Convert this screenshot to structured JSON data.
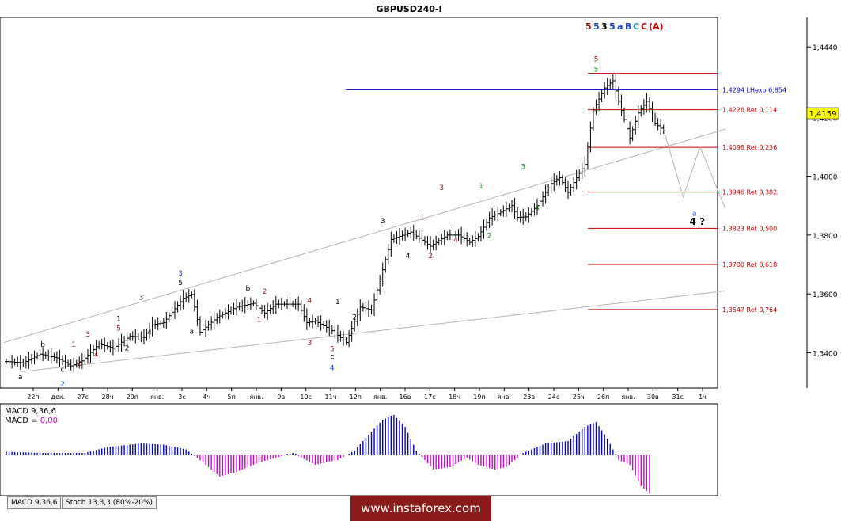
{
  "chart_data": [
    {
      "type": "candlestick",
      "title": "GBPUSD240-I",
      "ylim": [
        1.328,
        1.454
      ],
      "y_ticks": [
        "1,4440",
        "1,4200",
        "1,4000",
        "1,3800",
        "1,3600",
        "1,3400"
      ],
      "y_tick_values": [
        1.444,
        1.42,
        1.4,
        1.38,
        1.36,
        1.34
      ],
      "current_price_label": "1,4159",
      "current_price": 1.4159,
      "x_labels": [
        "22п",
        "дек.",
        "27с",
        "28ч",
        "29п",
        "янв.",
        "3с",
        "4ч",
        "5п",
        "янв.",
        "9в",
        "10с",
        "11ч",
        "12п",
        "янв.",
        "16в",
        "17с",
        "18ч",
        "19п",
        "янв.",
        "23в",
        "24с",
        "25ч",
        "26п",
        "янв.",
        "30в",
        "31с",
        "1ч"
      ],
      "n_bars": 240,
      "price_path": [
        [
          0,
          1.337
        ],
        [
          6,
          1.3365
        ],
        [
          12,
          1.3395
        ],
        [
          18,
          1.3382
        ],
        [
          23,
          1.3355
        ],
        [
          27,
          1.3372
        ],
        [
          33,
          1.343
        ],
        [
          38,
          1.3415
        ],
        [
          44,
          1.3456
        ],
        [
          49,
          1.3452
        ],
        [
          52,
          1.3495
        ],
        [
          56,
          1.3502
        ],
        [
          63,
          1.3585
        ],
        [
          66,
          1.3598
        ],
        [
          69,
          1.347
        ],
        [
          75,
          1.352
        ],
        [
          82,
          1.3555
        ],
        [
          88,
          1.3568
        ],
        [
          92,
          1.3535
        ],
        [
          96,
          1.3565
        ],
        [
          104,
          1.3565
        ],
        [
          107,
          1.3502
        ],
        [
          110,
          1.3508
        ],
        [
          116,
          1.3475
        ],
        [
          121,
          1.3435
        ],
        [
          126,
          1.3555
        ],
        [
          130,
          1.3545
        ],
        [
          137,
          1.3785
        ],
        [
          144,
          1.381
        ],
        [
          151,
          1.3762
        ],
        [
          157,
          1.38
        ],
        [
          161,
          1.38
        ],
        [
          165,
          1.3775
        ],
        [
          168,
          1.3795
        ],
        [
          172,
          1.3858
        ],
        [
          176,
          1.3878
        ],
        [
          180,
          1.39
        ],
        [
          182,
          1.386
        ],
        [
          185,
          1.3862
        ],
        [
          189,
          1.39
        ],
        [
          194,
          1.3975
        ],
        [
          197,
          1.3995
        ],
        [
          200,
          1.3945
        ],
        [
          203,
          1.3995
        ],
        [
          206,
          1.404
        ],
        [
          209,
          1.4225
        ],
        [
          213,
          1.43
        ],
        [
          216,
          1.4325
        ],
        [
          218,
          1.4255
        ],
        [
          222,
          1.413
        ],
        [
          225,
          1.4215
        ],
        [
          228,
          1.4255
        ],
        [
          231,
          1.418
        ],
        [
          234,
          1.4155
        ]
      ],
      "projection_path": [
        [
          234,
          1.4159
        ],
        [
          241,
          1.393
        ],
        [
          247,
          1.41
        ],
        [
          256,
          1.389
        ]
      ],
      "horizontal_levels": [
        {
          "price": 1.435,
          "label": "",
          "color": "#cc0000"
        },
        {
          "price": 1.4294,
          "label": "1,4294 LHexp 6,854",
          "color": "#0000cc"
        },
        {
          "price": 1.4226,
          "label": "1,4226 Ret 0,114",
          "color": "#cc0000"
        },
        {
          "price": 1.4098,
          "label": "1,4098 Ret 0,236",
          "color": "#cc0000"
        },
        {
          "price": 1.3946,
          "label": "1,3946 Ret 0,382",
          "color": "#cc0000"
        },
        {
          "price": 1.3823,
          "label": "1,3823 Ret 0,500",
          "color": "#cc0000"
        },
        {
          "price": 1.37,
          "label": "1,3700 Ret 0,618",
          "color": "#cc0000"
        },
        {
          "price": 1.3547,
          "label": "1,3547 Ret 0,764",
          "color": "#cc0000"
        }
      ],
      "wave_labels": [
        {
          "text": "a",
          "bar": 5,
          "price": 1.331,
          "color": "#000000"
        },
        {
          "text": "b",
          "bar": 13,
          "price": 1.342,
          "color": "#000000"
        },
        {
          "text": "c",
          "bar": 20,
          "price": 1.3335,
          "color": "#000000"
        },
        {
          "text": "2",
          "bar": 20,
          "price": 1.3285,
          "color": "#1a3fcc"
        },
        {
          "text": "1",
          "bar": 24,
          "price": 1.342,
          "color": "#8b1a1a"
        },
        {
          "text": "2",
          "bar": 26,
          "price": 1.3355,
          "color": "#8b1a1a"
        },
        {
          "text": "3",
          "bar": 29,
          "price": 1.3455,
          "color": "#8b1a1a"
        },
        {
          "text": "4",
          "bar": 32,
          "price": 1.3385,
          "color": "#8b1a1a"
        },
        {
          "text": "5",
          "bar": 40,
          "price": 1.3475,
          "color": "#8b1a1a"
        },
        {
          "text": "1",
          "bar": 40,
          "price": 1.3508,
          "color": "#000000"
        },
        {
          "text": "2",
          "bar": 43,
          "price": 1.3408,
          "color": "#000000"
        },
        {
          "text": "3",
          "bar": 48,
          "price": 1.358,
          "color": "#000000"
        },
        {
          "text": "4",
          "bar": 51,
          "price": 1.3462,
          "color": "#000000"
        },
        {
          "text": "3",
          "bar": 62,
          "price": 1.3662,
          "color": "#1a3fcc"
        },
        {
          "text": "5",
          "bar": 62,
          "price": 1.363,
          "color": "#000000"
        },
        {
          "text": "a",
          "bar": 66,
          "price": 1.3465,
          "color": "#000000"
        },
        {
          "text": "b",
          "bar": 86,
          "price": 1.361,
          "color": "#000000"
        },
        {
          "text": "1",
          "bar": 90,
          "price": 1.3505,
          "color": "#8b1a1a"
        },
        {
          "text": "2",
          "bar": 92,
          "price": 1.36,
          "color": "#8b1a1a"
        },
        {
          "text": "3",
          "bar": 108,
          "price": 1.3425,
          "color": "#8b1a1a"
        },
        {
          "text": "4",
          "bar": 108,
          "price": 1.357,
          "color": "#8b1a1a"
        },
        {
          "text": "1",
          "bar": 118,
          "price": 1.3565,
          "color": "#000000"
        },
        {
          "text": "2",
          "bar": 124,
          "price": 1.3513,
          "color": "#000000"
        },
        {
          "text": "5",
          "bar": 116,
          "price": 1.3405,
          "color": "#8b1a1a"
        },
        {
          "text": "c",
          "bar": 116,
          "price": 1.338,
          "color": "#000000"
        },
        {
          "text": "4",
          "bar": 116,
          "price": 1.334,
          "color": "#1a3fcc"
        },
        {
          "text": "3",
          "bar": 134,
          "price": 1.384,
          "color": "#000000"
        },
        {
          "text": "4",
          "bar": 143,
          "price": 1.3722,
          "color": "#000000"
        },
        {
          "text": "1",
          "bar": 148,
          "price": 1.3852,
          "color": "#8b1a1a"
        },
        {
          "text": "2",
          "bar": 151,
          "price": 1.3722,
          "color": "#8b1a1a"
        },
        {
          "text": "3",
          "bar": 155,
          "price": 1.3953,
          "color": "#8b1a1a"
        },
        {
          "text": "4",
          "bar": 160,
          "price": 1.3775,
          "color": "#8b1a1a"
        },
        {
          "text": "1",
          "bar": 169,
          "price": 1.3958,
          "color": "#1a8a1a"
        },
        {
          "text": "2",
          "bar": 172,
          "price": 1.379,
          "color": "#1a8a1a"
        },
        {
          "text": "3",
          "bar": 184,
          "price": 1.4025,
          "color": "#1a8a1a"
        },
        {
          "text": "4",
          "bar": 189,
          "price": 1.3885,
          "color": "#1a8a1a"
        },
        {
          "text": "5",
          "bar": 210,
          "price": 1.439,
          "color": "#8b1a1a"
        },
        {
          "text": "5",
          "bar": 210,
          "price": 1.4355,
          "color": "#1a8a1a"
        },
        {
          "text": "a",
          "bar": 245,
          "price": 1.3865,
          "color": "#1a3fcc"
        },
        {
          "text": "4 ?",
          "bar": 246,
          "price": 1.3835,
          "color": "#000000"
        }
      ],
      "top_label_parts": [
        {
          "text": "5",
          "color": "#8b1a1a"
        },
        {
          "text": "5",
          "color": "#1a3fcc"
        },
        {
          "text": "3",
          "color": "#000000"
        },
        {
          "text": "5",
          "color": "#1a3fcc"
        },
        {
          "text": "a",
          "color": "#1a3fcc"
        },
        {
          "text": "B",
          "color": "#1a3fcc"
        },
        {
          "text": "C",
          "color": "#1aa0c8"
        },
        {
          "text": "C",
          "color": "#cc0000"
        },
        {
          "text": "(A)",
          "color": "#cc0000"
        }
      ],
      "trendlines": [
        {
          "from": [
            -6,
            1.342
          ],
          "to": [
            256,
            1.416
          ]
        },
        {
          "from": [
            5,
            1.3335
          ],
          "to": [
            256,
            1.361
          ]
        }
      ]
    },
    {
      "type": "histogram",
      "title": "MACD 9,36,6",
      "subtitle": "MACD = 0,00",
      "n_bars": 240,
      "series_path": [
        [
          0,
          0.15
        ],
        [
          12,
          0.1
        ],
        [
          20,
          0.1
        ],
        [
          28,
          0.1
        ],
        [
          36,
          0.35
        ],
        [
          48,
          0.5
        ],
        [
          56,
          0.45
        ],
        [
          64,
          0.25
        ],
        [
          70,
          -0.3
        ],
        [
          76,
          -0.9
        ],
        [
          82,
          -0.7
        ],
        [
          90,
          -0.3
        ],
        [
          102,
          0.1
        ],
        [
          110,
          -0.4
        ],
        [
          118,
          -0.2
        ],
        [
          124,
          0.2
        ],
        [
          130,
          1.0
        ],
        [
          134,
          1.5
        ],
        [
          138,
          1.7
        ],
        [
          142,
          1.2
        ],
        [
          146,
          0.2
        ],
        [
          152,
          -0.6
        ],
        [
          158,
          -0.5
        ],
        [
          164,
          -0.1
        ],
        [
          168,
          -0.4
        ],
        [
          174,
          -0.6
        ],
        [
          178,
          -0.5
        ],
        [
          184,
          0.1
        ],
        [
          192,
          0.5
        ],
        [
          200,
          0.6
        ],
        [
          206,
          1.2
        ],
        [
          210,
          1.4
        ],
        [
          214,
          0.7
        ],
        [
          218,
          -0.2
        ],
        [
          222,
          -0.4
        ],
        [
          226,
          -1.3
        ],
        [
          229,
          -1.6
        ]
      ]
    }
  ],
  "bottom_tabs": [
    "MACD 9,36,6",
    "Stoch 13,3,3 (80%-20%)"
  ],
  "watermark": "www.instaforex.com"
}
